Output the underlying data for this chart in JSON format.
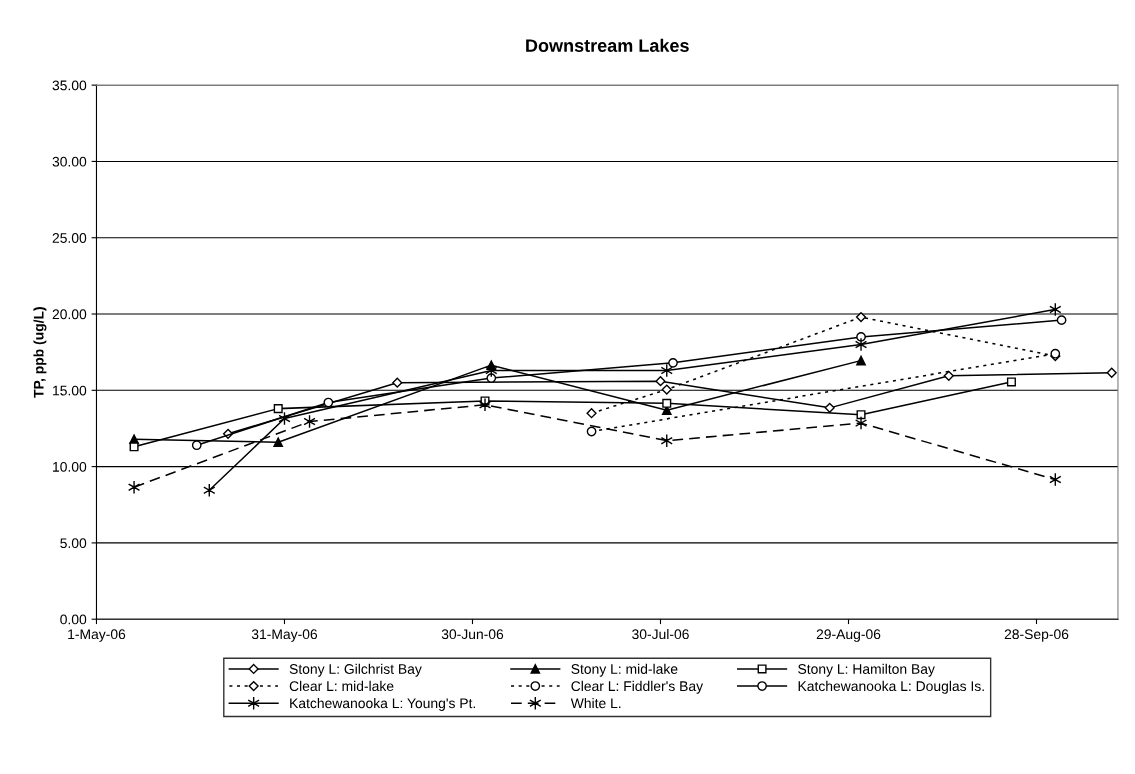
{
  "chart_data": {
    "type": "line",
    "title": "Downstream Lakes",
    "ylabel": "TP, ppb (ug/L)",
    "xlim": [
      "2006-05-01",
      "2006-10-11"
    ],
    "xticks": [
      {
        "value": "2006-05-01",
        "label": "1-May-06"
      },
      {
        "value": "2006-05-31",
        "label": "31-May-06"
      },
      {
        "value": "2006-06-30",
        "label": "30-Jun-06"
      },
      {
        "value": "2006-07-30",
        "label": "30-Jul-06"
      },
      {
        "value": "2006-08-29",
        "label": "29-Aug-06"
      },
      {
        "value": "2006-09-28",
        "label": "28-Sep-06"
      }
    ],
    "ylim": [
      0,
      35
    ],
    "yticks": [
      {
        "value": 0,
        "label": "0.00"
      },
      {
        "value": 5,
        "label": "5.00"
      },
      {
        "value": 10,
        "label": "10.00"
      },
      {
        "value": 15,
        "label": "15.00"
      },
      {
        "value": 20,
        "label": "20.00"
      },
      {
        "value": 25,
        "label": "25.00"
      },
      {
        "value": 30,
        "label": "30.00"
      },
      {
        "value": 35,
        "label": "35.00"
      }
    ],
    "grid": "y",
    "legend": "bottom",
    "series": [
      {
        "name": "Stony L: Gilchrist Bay",
        "color": "#000000",
        "marker": "diamond",
        "line_style": "solid",
        "x": [
          "2006-05-22",
          "2006-06-18",
          "2006-07-30",
          "2006-08-26",
          "2006-09-14",
          "2006-10-10"
        ],
        "values": [
          12.15,
          15.5,
          15.6,
          13.85,
          15.95,
          16.15
        ]
      },
      {
        "name": "Stony L: mid-lake",
        "color": "#000000",
        "marker": "triangle",
        "line_style": "solid",
        "x": [
          "2006-05-07",
          "2006-05-30",
          "2006-07-03",
          "2006-07-31",
          "2006-08-31"
        ],
        "values": [
          11.8,
          11.6,
          16.65,
          13.7,
          16.95
        ]
      },
      {
        "name": "Stony L: Hamilton Bay",
        "color": "#000000",
        "marker": "square",
        "line_style": "solid",
        "x": [
          "2006-05-07",
          "2006-05-30",
          "2006-07-02",
          "2006-07-31",
          "2006-08-31",
          "2006-09-24"
        ],
        "values": [
          11.3,
          13.8,
          14.3,
          14.15,
          13.4,
          15.55
        ]
      },
      {
        "name": "Clear L: mid-lake",
        "color": "#000000",
        "marker": "diamond",
        "line_style": "dotted",
        "x": [
          "2006-07-19",
          "2006-07-31",
          "2006-08-31",
          "2006-10-01"
        ],
        "values": [
          13.5,
          15.05,
          19.8,
          17.25
        ]
      },
      {
        "name": "Clear L: Fiddler's Bay",
        "color": "#000000",
        "marker": "circle",
        "line_style": "dotted",
        "x": [
          "2006-07-19",
          "2006-10-01"
        ],
        "values": [
          12.3,
          17.4
        ]
      },
      {
        "name": "Katchewanooka L: Douglas Is.",
        "color": "#000000",
        "marker": "circle",
        "line_style": "solid",
        "x": [
          "2006-05-17",
          "2006-06-07",
          "2006-07-03",
          "2006-08-01",
          "2006-08-31",
          "2006-10-02"
        ],
        "values": [
          11.4,
          14.2,
          15.8,
          16.8,
          18.5,
          19.6
        ]
      },
      {
        "name": "Katchewanooka L: Young's Pt.",
        "color": "#000000",
        "marker": "cross",
        "line_style": "solid",
        "x": [
          "2006-05-19",
          "2006-05-31",
          "2006-07-03",
          "2006-07-31",
          "2006-08-31",
          "2006-10-01"
        ],
        "values": [
          8.45,
          13.15,
          16.3,
          16.3,
          18.0,
          20.3
        ]
      },
      {
        "name": "White L.",
        "color": "#000000",
        "marker": "cross",
        "line_style": "dashed",
        "x": [
          "2006-05-07",
          "2006-06-04",
          "2006-07-02",
          "2006-07-31",
          "2006-08-31",
          "2006-10-01"
        ],
        "values": [
          8.65,
          12.95,
          14.05,
          11.7,
          12.85,
          9.15
        ]
      }
    ]
  }
}
